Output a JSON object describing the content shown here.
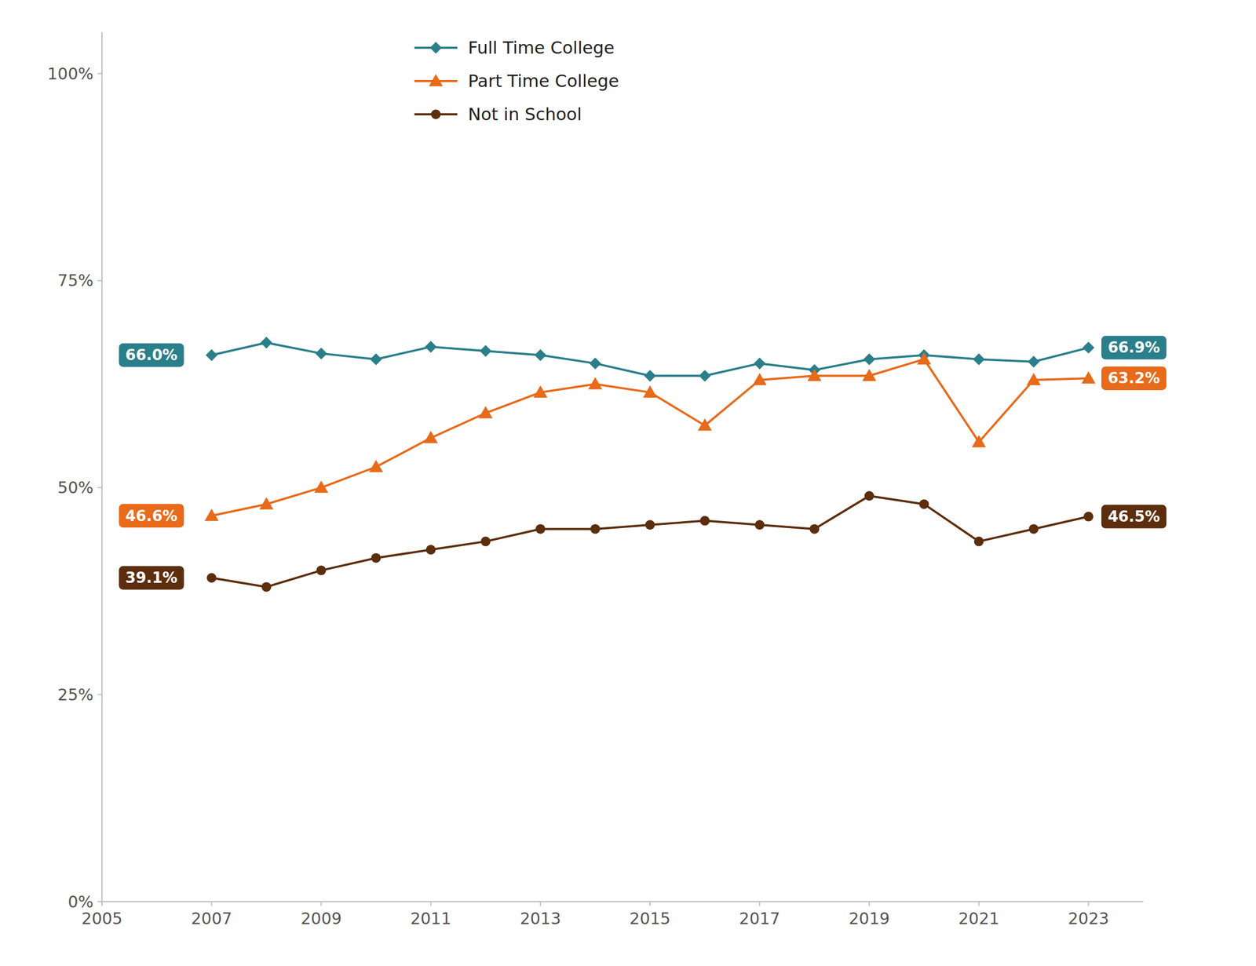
{
  "chart_data": {
    "type": "line",
    "x": [
      2007,
      2008,
      2009,
      2010,
      2011,
      2012,
      2013,
      2014,
      2015,
      2016,
      2017,
      2018,
      2019,
      2020,
      2021,
      2022,
      2023
    ],
    "series": [
      {
        "name": "Full Time College",
        "color": "#2a7f8a",
        "marker": "diamond",
        "values": [
          66.0,
          67.5,
          66.2,
          65.5,
          67.0,
          66.5,
          66.0,
          65.0,
          63.5,
          63.5,
          65.0,
          64.2,
          65.5,
          66.0,
          65.5,
          65.2,
          66.9
        ],
        "value_labels": [
          "66.0%",
          null,
          null,
          null,
          null,
          null,
          null,
          null,
          null,
          null,
          null,
          null,
          null,
          null,
          null,
          null,
          "66.9%"
        ]
      },
      {
        "name": "Part Time College",
        "color": "#e86a1a",
        "marker": "triangle",
        "values": [
          46.6,
          48.0,
          50.0,
          52.5,
          56.0,
          59.0,
          61.5,
          62.5,
          61.5,
          57.5,
          63.0,
          63.5,
          63.5,
          65.5,
          55.5,
          63.0,
          63.2
        ],
        "value_labels": [
          "46.6%",
          null,
          null,
          null,
          null,
          null,
          null,
          null,
          null,
          null,
          null,
          null,
          null,
          null,
          null,
          null,
          "63.2%"
        ]
      },
      {
        "name": "Not in School",
        "color": "#5c2e0e",
        "marker": "circle",
        "values": [
          39.1,
          38.0,
          40.0,
          41.5,
          42.5,
          43.5,
          45.0,
          45.0,
          45.5,
          46.0,
          45.5,
          45.0,
          49.0,
          48.0,
          43.5,
          45.0,
          46.5
        ],
        "value_labels": [
          "39.1%",
          null,
          null,
          null,
          null,
          null,
          null,
          null,
          null,
          null,
          null,
          null,
          null,
          null,
          null,
          null,
          "46.5%"
        ]
      }
    ],
    "xlim": [
      2005,
      2024
    ],
    "xticks": [
      2005,
      2007,
      2009,
      2011,
      2013,
      2015,
      2017,
      2019,
      2021,
      2023
    ],
    "ylim": [
      0,
      105
    ],
    "yticks": [
      {
        "value": 0,
        "label": "0%"
      },
      {
        "value": 25,
        "label": "25%"
      },
      {
        "value": 50,
        "label": "50%"
      },
      {
        "value": 75,
        "label": "75%"
      },
      {
        "value": 100,
        "label": "100%"
      }
    ],
    "grid": false,
    "legend": "upper left"
  }
}
